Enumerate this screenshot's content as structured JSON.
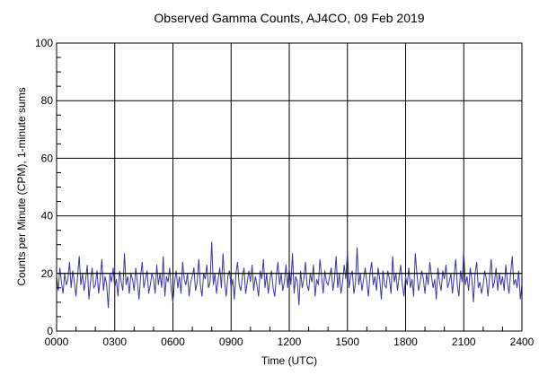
{
  "chart_data": {
    "type": "line",
    "title": "Observed Gamma Counts, AJ4CO, 09 Feb 2019",
    "xlabel": "Time (UTC)",
    "ylabel": "Counts per Minute (CPM), 1-minute sums",
    "xlim": [
      0,
      2400
    ],
    "ylim": [
      0,
      100
    ],
    "x_ticks": [
      "0000",
      "0300",
      "0600",
      "0900",
      "1200",
      "1500",
      "1800",
      "2100",
      "2400"
    ],
    "y_ticks": [
      "0",
      "20",
      "40",
      "60",
      "80",
      "100"
    ],
    "grid": true,
    "reference_line_value": 20,
    "series_color": "#3a3a9a",
    "sample_interval_minutes": 5,
    "series": [
      {
        "values": [
          19,
          14,
          22,
          17,
          13,
          20,
          16,
          18,
          24,
          15,
          21,
          17,
          12,
          19,
          26,
          16,
          20,
          14,
          18,
          23,
          11,
          17,
          22,
          15,
          16,
          21,
          13,
          18,
          25,
          14,
          19,
          16,
          8,
          20,
          17,
          22,
          15,
          18,
          12,
          21,
          17,
          14,
          27,
          16,
          19,
          13,
          20,
          18,
          14,
          22,
          17,
          11,
          19,
          24,
          15,
          18,
          21,
          13,
          16,
          20,
          18,
          13,
          23,
          16,
          20,
          15,
          26,
          12,
          19,
          17,
          22,
          14,
          10,
          17,
          21,
          15,
          19,
          13,
          24,
          18,
          16,
          20,
          12,
          17,
          19,
          22,
          14,
          17,
          25,
          16,
          12,
          20,
          18,
          23,
          15,
          17,
          31,
          16,
          20,
          13,
          18,
          22,
          15,
          27,
          17,
          12,
          19,
          21,
          15,
          18,
          11,
          20,
          24,
          16,
          14,
          19,
          22,
          13,
          17,
          21,
          17,
          23,
          14,
          19,
          16,
          12,
          21,
          18,
          25,
          15,
          20,
          13,
          18,
          21,
          15,
          12,
          19,
          24,
          16,
          20,
          14,
          17,
          23,
          15,
          22,
          16,
          27,
          13,
          19,
          17,
          9,
          21,
          15,
          18,
          24,
          16,
          14,
          20,
          17,
          23,
          12,
          18,
          16,
          25,
          19,
          13,
          21,
          17,
          16,
          19,
          22,
          14,
          18,
          26,
          15,
          20,
          13,
          17,
          23,
          18,
          28,
          15,
          19,
          21,
          13,
          17,
          29,
          16,
          20,
          14,
          18,
          22,
          17,
          12,
          20,
          24,
          16,
          19,
          14,
          22,
          18,
          11,
          21,
          16,
          15,
          21,
          18,
          13,
          26,
          17,
          20,
          14,
          19,
          23,
          16,
          12,
          19,
          16,
          22,
          15,
          18,
          12,
          27,
          20,
          14,
          17,
          21,
          18,
          13,
          20,
          16,
          24,
          19,
          15,
          18,
          11,
          22,
          17,
          14,
          21,
          18,
          23,
          15,
          17,
          20,
          13,
          19,
          25,
          16,
          12,
          21,
          17,
          28,
          16,
          19,
          14,
          22,
          18,
          10,
          20,
          24,
          15,
          17,
          13,
          16,
          21,
          18,
          12,
          19,
          25,
          15,
          17,
          22,
          14,
          20,
          16,
          19,
          14,
          23,
          17,
          13,
          20,
          26,
          16,
          18,
          15,
          21,
          11,
          16
        ]
      }
    ]
  }
}
